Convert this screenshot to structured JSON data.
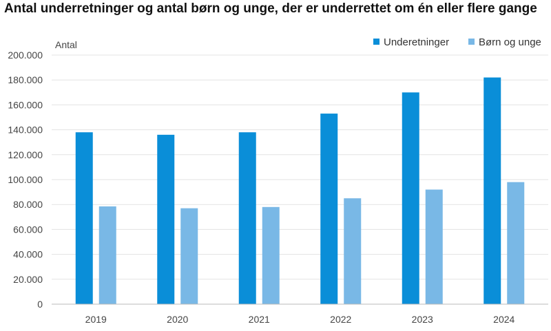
{
  "chart_data": {
    "type": "bar",
    "title": "Antal underretninger og antal børn og unge, der er underrettet om én eller flere gange",
    "ylabel": "Antal",
    "xlabel": "",
    "categories": [
      "2019",
      "2020",
      "2021",
      "2022",
      "2023",
      "2024"
    ],
    "series": [
      {
        "name": "Underetninger",
        "values": [
          138000,
          136000,
          138000,
          153000,
          170000,
          182000
        ],
        "color": "#0a8ed8"
      },
      {
        "name": "Børn og unge",
        "values": [
          78500,
          77000,
          78000,
          85000,
          92000,
          98000
        ],
        "color": "#79b8e6"
      }
    ],
    "ylim": [
      0,
      200000
    ],
    "yticks": [
      "0",
      "20.000",
      "40.000",
      "60.000",
      "80.000",
      "100.000",
      "120.000",
      "140.000",
      "160.000",
      "180.000",
      "200.000"
    ],
    "grid": true,
    "legend_position": "top-right"
  }
}
